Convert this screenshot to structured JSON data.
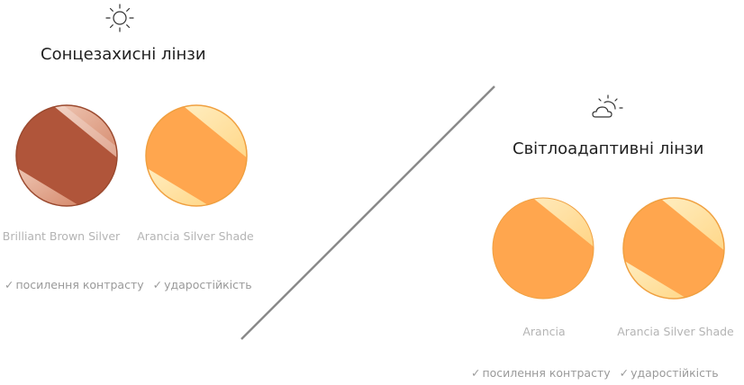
{
  "sunglasses": {
    "icon": "sun-icon",
    "title": "Сонцезахисні лінзи",
    "lenses": [
      {
        "label": "Brilliant Brown Silver",
        "base_color": "#b0553a",
        "type": "mirror"
      },
      {
        "label": "Arancia Silver Shade",
        "base_color": "#ffa64e",
        "type": "mirror"
      }
    ],
    "features": [
      "посилення контрасту",
      "ударостійкість"
    ]
  },
  "photochromic": {
    "icon": "sun-cloud-icon",
    "title": "Світлоадаптивні лінзи",
    "lenses": [
      {
        "label": "Arancia",
        "base_color": "#ffa64e",
        "type": "solid"
      },
      {
        "label": "Arancia Silver Shade",
        "base_color": "#ffa64e",
        "type": "mirror"
      }
    ],
    "features": [
      "посилення контрасту",
      "ударостійкість"
    ]
  },
  "check_mark": "✓",
  "colors": {
    "divider": "#8a8a8a",
    "label": "#b4b4b4",
    "feature": "#9a9a9a"
  }
}
